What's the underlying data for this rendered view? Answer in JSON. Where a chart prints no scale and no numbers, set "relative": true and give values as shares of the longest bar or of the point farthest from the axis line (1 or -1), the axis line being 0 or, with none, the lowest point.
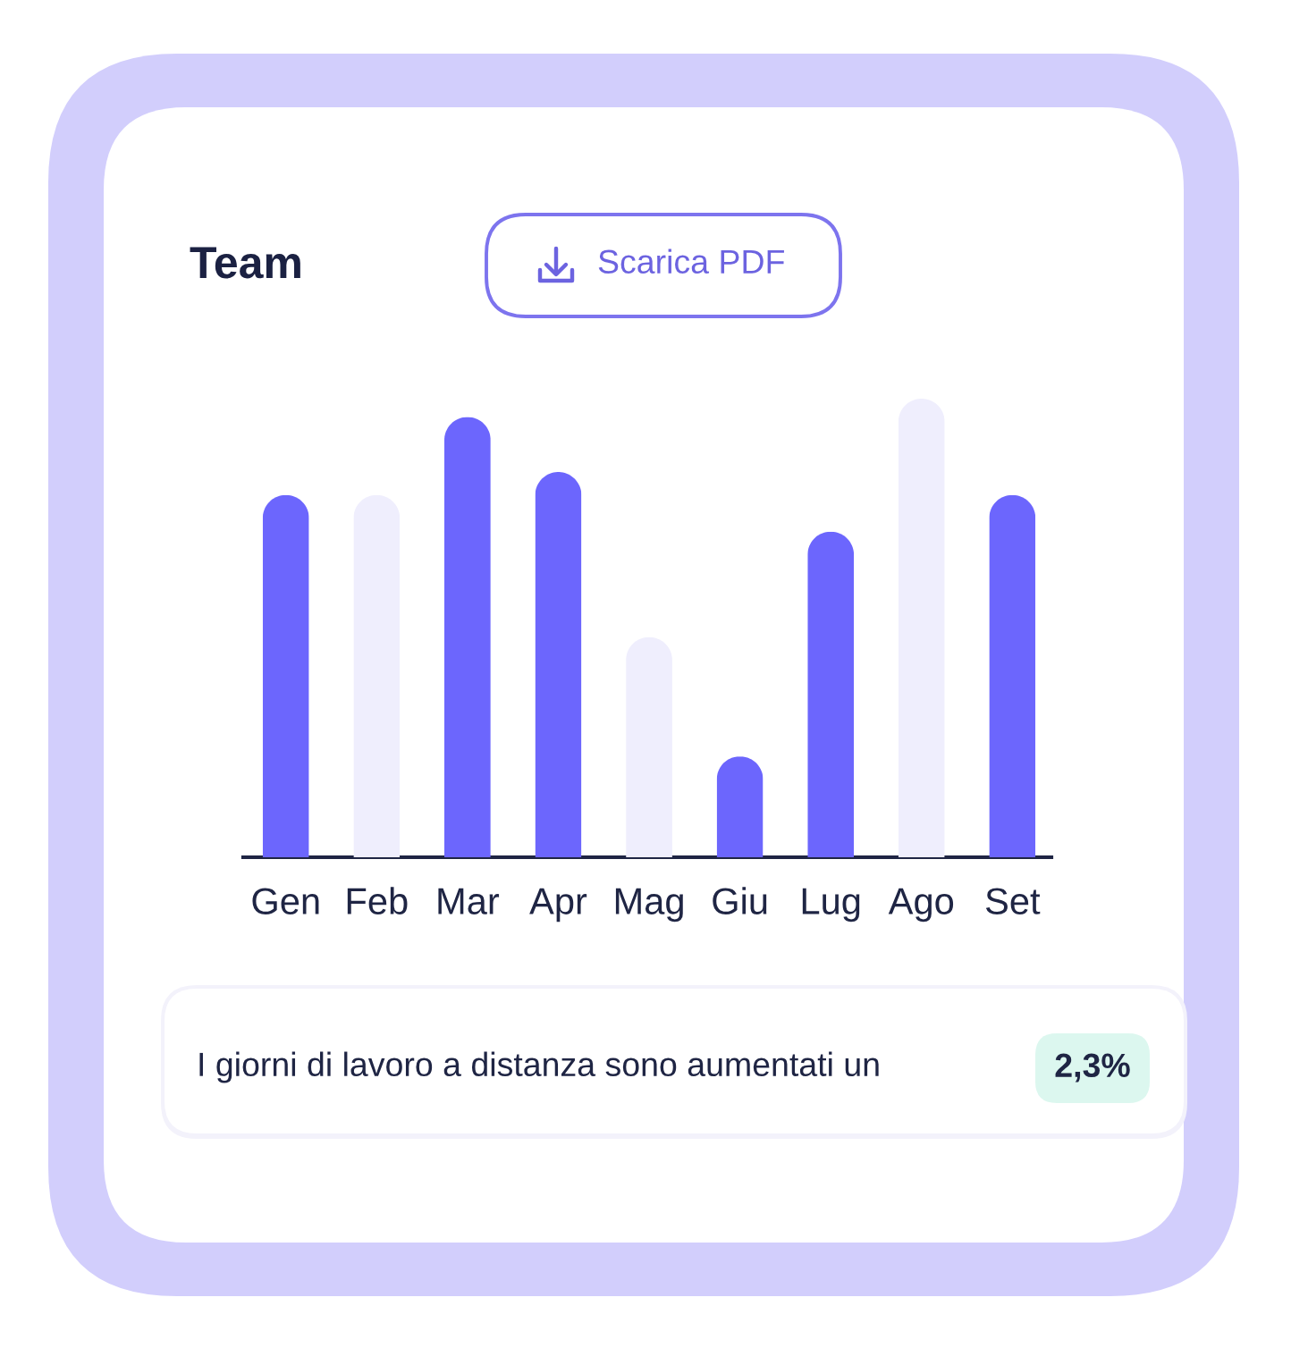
{
  "chart_data": {
    "type": "bar",
    "title": "Team",
    "categories": [
      "Gen",
      "Feb",
      "Mar",
      "Apr",
      "Mag",
      "Giu",
      "Lug",
      "Ago",
      "Set"
    ],
    "values": [
      0.79,
      0.79,
      0.96,
      0.84,
      0.48,
      0.22,
      0.71,
      1,
      0.79
    ],
    "colors": [
      "#6c66fd",
      "#efeefd",
      "#6c66fd",
      "#6c66fd",
      "#efeefd",
      "#6c66fd",
      "#6c66fd",
      "#efeefd",
      "#6c66fd"
    ],
    "relative": true,
    "annotations": [
      "Scarica PDF",
      "I giorni di lavoro a distanza sono aumentati un",
      "2,3%"
    ]
  }
}
